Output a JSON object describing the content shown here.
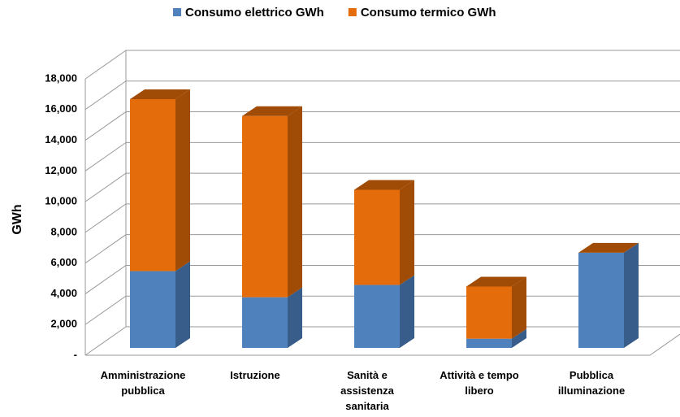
{
  "chart_data": {
    "type": "bar3d_stacked",
    "y_label": "GWh",
    "categories": [
      "Amministrazione pubblica",
      "Istruzione",
      "Sanità e assistenza sanitaria",
      "Attività e tempo libero",
      "Pubblica illuminazione"
    ],
    "series": [
      {
        "name": "Consumo elettrico GWh",
        "color": "#4f81bd",
        "side": "#385d8a",
        "values": [
          5000,
          3300,
          4100,
          600,
          6200
        ]
      },
      {
        "name": "Consumo termico GWh",
        "color": "#e46c0a",
        "side": "#a04c07",
        "values": [
          11200,
          11800,
          6200,
          3400,
          0
        ]
      }
    ],
    "ylim": [
      0,
      18000
    ],
    "yticks": [
      {
        "value": 0,
        "label": "-"
      },
      {
        "value": 2000,
        "label": "2,000"
      },
      {
        "value": 4000,
        "label": "4,000"
      },
      {
        "value": 6000,
        "label": "6,000"
      },
      {
        "value": 8000,
        "label": "8,000"
      },
      {
        "value": 10000,
        "label": "10,000"
      },
      {
        "value": 12000,
        "label": "12,000"
      },
      {
        "value": 14000,
        "label": "14,000"
      },
      {
        "value": 16000,
        "label": "16,000"
      },
      {
        "value": 18000,
        "label": "18,000"
      }
    ],
    "grid": true,
    "legend": "top"
  }
}
